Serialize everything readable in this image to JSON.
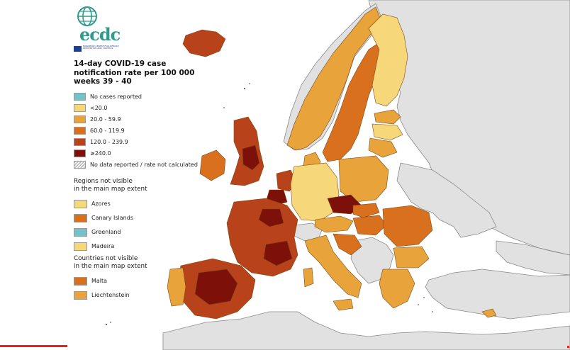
{
  "logo": {
    "text": "ecdc",
    "subtitle": "European Centre for Disease Prevention and Control",
    "globe_icon": "globe-icon",
    "flag_icon": "eu-flag-icon"
  },
  "legend": {
    "title": "14-day COVID-19 case notification rate per 100 000 weeks 39 - 40",
    "items": [
      {
        "label": "No cases reported",
        "color": "#75c1c8"
      },
      {
        "label": "<20.0",
        "color": "#f6d77a"
      },
      {
        "label": "20.0 - 59.9",
        "color": "#e8a33a"
      },
      {
        "label": "60.0 - 119.9",
        "color": "#d9701e"
      },
      {
        "label": "120.0 - 239.9",
        "color": "#b8421a"
      },
      {
        "label": "≥240.0",
        "color": "#7d1008"
      },
      {
        "label": "No data reported / rate not calculated",
        "color": "hatch"
      }
    ],
    "regions_title": "Regions not visible\nin the main map extent",
    "regions": [
      {
        "label": "Azores",
        "color": "#f6d77a"
      },
      {
        "label": "Canary Islands",
        "color": "#d9701e"
      },
      {
        "label": "Greenland",
        "color": "#75c1c8"
      },
      {
        "label": "Madeira",
        "color": "#f6d77a"
      }
    ],
    "countries_title": "Countries not visible\nin the main map extent",
    "countries": [
      {
        "label": "Malta",
        "color": "#d9701e"
      },
      {
        "label": "Liechtenstein",
        "color": "#e8a33a"
      }
    ]
  },
  "map": {
    "background_color": "#ffffff",
    "non_eu_color": "#e1e1e1",
    "border_color": "#8a8a8a",
    "region_border_color": "#7a4a1a"
  }
}
